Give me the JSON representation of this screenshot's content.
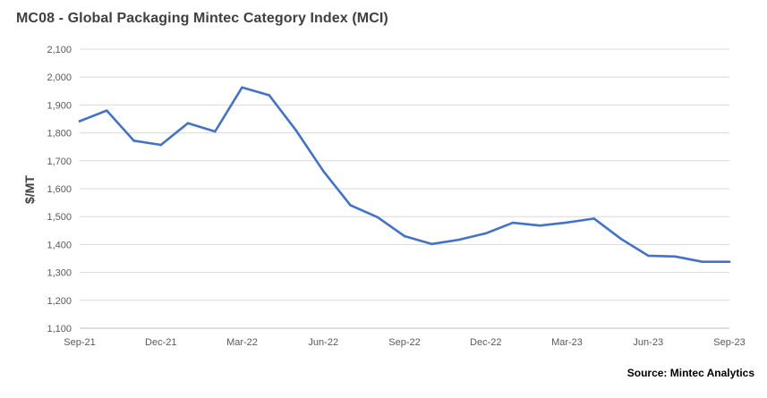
{
  "title": "MC08 - Global Packaging Mintec Category Index  (MCI)",
  "source": "Source: Mintec Analytics",
  "colors": {
    "line": "#4472C4",
    "grid": "#D9D9D9",
    "axis": "#BFBFBF"
  },
  "chart_data": {
    "type": "line",
    "title": "MC08 - Global Packaging Mintec Category Index  (MCI)",
    "xlabel": "",
    "ylabel": "$/MT",
    "ylim": [
      1100,
      2100
    ],
    "yticks": [
      1100,
      1200,
      1300,
      1400,
      1500,
      1600,
      1700,
      1800,
      1900,
      2000,
      2100
    ],
    "ytick_labels": [
      "1,100",
      "1,200",
      "1,300",
      "1,400",
      "1,500",
      "1,600",
      "1,700",
      "1,800",
      "1,900",
      "2,000",
      "2,100"
    ],
    "x": [
      "Sep-21",
      "Oct-21",
      "Nov-21",
      "Dec-21",
      "Jan-22",
      "Feb-22",
      "Mar-22",
      "Apr-22",
      "May-22",
      "Jun-22",
      "Jul-22",
      "Aug-22",
      "Sep-22",
      "Oct-22",
      "Nov-22",
      "Dec-22",
      "Jan-23",
      "Feb-23",
      "Mar-23",
      "Apr-23",
      "May-23",
      "Jun-23",
      "Jul-23",
      "Aug-23",
      "Sep-23"
    ],
    "xtick_labels": [
      "Sep-21",
      "Dec-21",
      "Mar-22",
      "Jun-22",
      "Sep-22",
      "Dec-22",
      "Mar-23",
      "Jun-23",
      "Sep-23"
    ],
    "grid": true,
    "legend": "none",
    "series": [
      {
        "values": [
          1842,
          1880,
          1772,
          1757,
          1835,
          1805,
          1963,
          1935,
          1808,
          1663,
          1541,
          1498,
          1430,
          1402,
          1417,
          1440,
          1478,
          1468,
          1479,
          1493,
          1420,
          1360,
          1357,
          1338,
          1338
        ]
      }
    ]
  }
}
